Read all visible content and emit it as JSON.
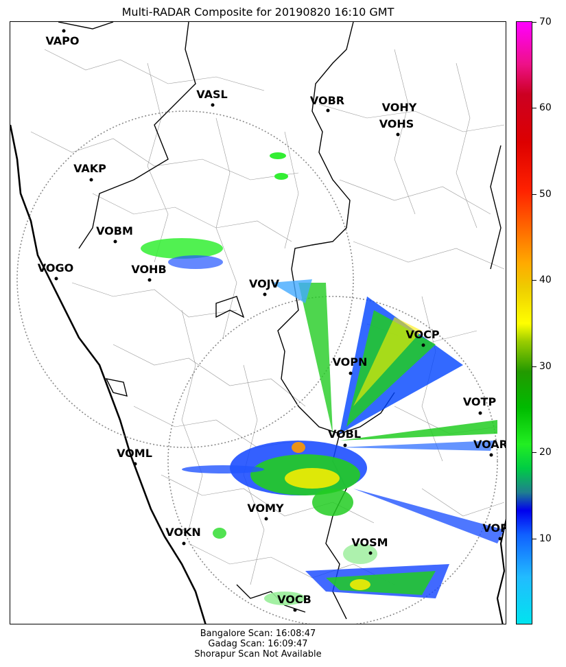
{
  "title": "Multi-RADAR Composite for 20190820 16:10 GMT",
  "footer": {
    "line1": "Bangalore Scan: 16:08:47",
    "line2": "Gadag Scan: 16:09:47",
    "line3": "Shorapur Scan Not Available"
  },
  "colorbar": {
    "min": 0,
    "max": 70,
    "ticks": [
      "10",
      "20",
      "30",
      "40",
      "50",
      "60",
      "70"
    ]
  },
  "stations": [
    {
      "code": "VAPO"
    },
    {
      "code": "VASL"
    },
    {
      "code": "VOBR"
    },
    {
      "code": "VOHY"
    },
    {
      "code": "VOHS"
    },
    {
      "code": "VAKP"
    },
    {
      "code": "VOBM"
    },
    {
      "code": "VOGO"
    },
    {
      "code": "VOHB"
    },
    {
      "code": "VOJV"
    },
    {
      "code": "VOCP"
    },
    {
      "code": "VOPN"
    },
    {
      "code": "VOTP"
    },
    {
      "code": "VOBL"
    },
    {
      "code": "VOAR"
    },
    {
      "code": "VOML"
    },
    {
      "code": "VOMY"
    },
    {
      "code": "VOKN"
    },
    {
      "code": "VOSM"
    },
    {
      "code": "VOPC"
    },
    {
      "code": "VOCB"
    }
  ]
}
